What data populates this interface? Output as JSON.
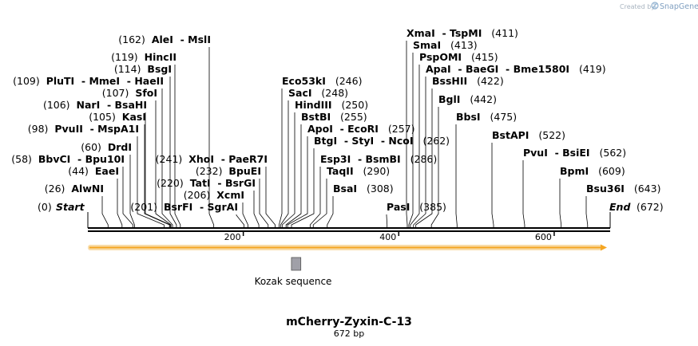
{
  "header": {
    "credit_prefix": "Created by",
    "credit_brand": "SnapGene"
  },
  "sequence": {
    "name": "mCherry-Zyxin-C-13",
    "length_label": "672 bp",
    "length": 672
  },
  "ends": {
    "start": {
      "label": "Start",
      "pos_label": "(0)"
    },
    "end": {
      "label": "End",
      "pos_label": "(672)"
    }
  },
  "ruler_ticks": [
    {
      "value": 200,
      "label": "200"
    },
    {
      "value": 400,
      "label": "400"
    },
    {
      "value": 600,
      "label": "600"
    }
  ],
  "features": [
    {
      "name": "Kozak sequence",
      "start": 264,
      "end": 274,
      "color": "#a0a0a8"
    },
    {
      "name": "orf",
      "start": 0,
      "end": 670,
      "color": "#f5a623",
      "track": "orf"
    }
  ],
  "sites_left": [
    {
      "names": [
        "AleI",
        "MslI"
      ],
      "pos": 162,
      "pos_label": "(162)"
    },
    {
      "names": [
        "HincII"
      ],
      "pos": 119,
      "pos_label": "(119)"
    },
    {
      "names": [
        "BsgI"
      ],
      "pos": 114,
      "pos_label": "(114)"
    },
    {
      "names": [
        "PluTI",
        "MmeI",
        "HaeII"
      ],
      "pos": 109,
      "pos_label": "(109)"
    },
    {
      "names": [
        "SfoI"
      ],
      "pos": 107,
      "pos_label": "(107)"
    },
    {
      "names": [
        "NarI",
        "BsaHI"
      ],
      "pos": 106,
      "pos_label": "(106)"
    },
    {
      "names": [
        "KasI"
      ],
      "pos": 105,
      "pos_label": "(105)"
    },
    {
      "names": [
        "PvuII",
        "MspA1I"
      ],
      "pos": 98,
      "pos_label": "(98)"
    },
    {
      "names": [
        "DrdI"
      ],
      "pos": 60,
      "pos_label": "(60)"
    },
    {
      "names": [
        "BbvCI",
        "Bpu10I"
      ],
      "pos": 58,
      "pos_label": "(58)"
    },
    {
      "names": [
        "EaeI"
      ],
      "pos": 44,
      "pos_label": "(44)"
    },
    {
      "names": [
        "AlwNI"
      ],
      "pos": 26,
      "pos_label": "(26)"
    }
  ],
  "sites_middle": [
    {
      "names": [
        "XhoI",
        "PaeR7I"
      ],
      "pos": 241,
      "pos_label": "(241)"
    },
    {
      "names": [
        "BpuEI"
      ],
      "pos": 232,
      "pos_label": "(232)"
    },
    {
      "names": [
        "TatI",
        "BsrGI"
      ],
      "pos": 220,
      "pos_label": "(220)"
    },
    {
      "names": [
        "XcmI"
      ],
      "pos": 206,
      "pos_label": "(206)"
    },
    {
      "names": [
        "BsrFI",
        "SgrAI"
      ],
      "pos": 201,
      "pos_label": "(201)"
    }
  ],
  "sites_right1": [
    {
      "names": [
        "Eco53kI"
      ],
      "pos": 246,
      "pos_label": "(246)"
    },
    {
      "names": [
        "SacI"
      ],
      "pos": 248,
      "pos_label": "(248)"
    },
    {
      "names": [
        "HindIII"
      ],
      "pos": 250,
      "pos_label": "(250)"
    },
    {
      "names": [
        "BstBI"
      ],
      "pos": 255,
      "pos_label": "(255)"
    },
    {
      "names": [
        "ApoI",
        "EcoRI"
      ],
      "pos": 257,
      "pos_label": "(257)"
    },
    {
      "names": [
        "BtgI",
        "StyI",
        "NcoI"
      ],
      "pos": 262,
      "pos_label": "(262)"
    },
    {
      "names": [
        "Esp3I",
        "BsmBI"
      ],
      "pos": 286,
      "pos_label": "(286)"
    },
    {
      "names": [
        "TaqII"
      ],
      "pos": 290,
      "pos_label": "(290)"
    },
    {
      "names": [
        "BsaI"
      ],
      "pos": 308,
      "pos_label": "(308)"
    }
  ],
  "sites_right2": [
    {
      "names": [
        "XmaI",
        "TspMI"
      ],
      "pos": 411,
      "pos_label": "(411)"
    },
    {
      "names": [
        "SmaI"
      ],
      "pos": 413,
      "pos_label": "(413)"
    },
    {
      "names": [
        "PspOMI"
      ],
      "pos": 415,
      "pos_label": "(415)"
    },
    {
      "names": [
        "ApaI",
        "BaeGI",
        "Bme1580I"
      ],
      "pos": 419,
      "pos_label": "(419)"
    },
    {
      "names": [
        "BssHII"
      ],
      "pos": 422,
      "pos_label": "(422)"
    },
    {
      "names": [
        "BglI"
      ],
      "pos": 442,
      "pos_label": "(442)"
    },
    {
      "names": [
        "BbsI"
      ],
      "pos": 475,
      "pos_label": "(475)"
    },
    {
      "names": [
        "BstAPI"
      ],
      "pos": 522,
      "pos_label": "(522)"
    },
    {
      "names": [
        "PvuI",
        "BsiEI"
      ],
      "pos": 562,
      "pos_label": "(562)"
    },
    {
      "names": [
        "BpmI"
      ],
      "pos": 609,
      "pos_label": "(609)"
    },
    {
      "names": [
        "Bsu36I"
      ],
      "pos": 643,
      "pos_label": "(643)"
    },
    {
      "names": [
        "PasI"
      ],
      "pos": 385,
      "pos_label": "(385)"
    }
  ],
  "colors": {
    "backbone": "#000000",
    "orf_fill": "#f5a623",
    "orf_glow": "#f8dca8",
    "feature": "#a0a0a8",
    "site_line": "#000000"
  }
}
